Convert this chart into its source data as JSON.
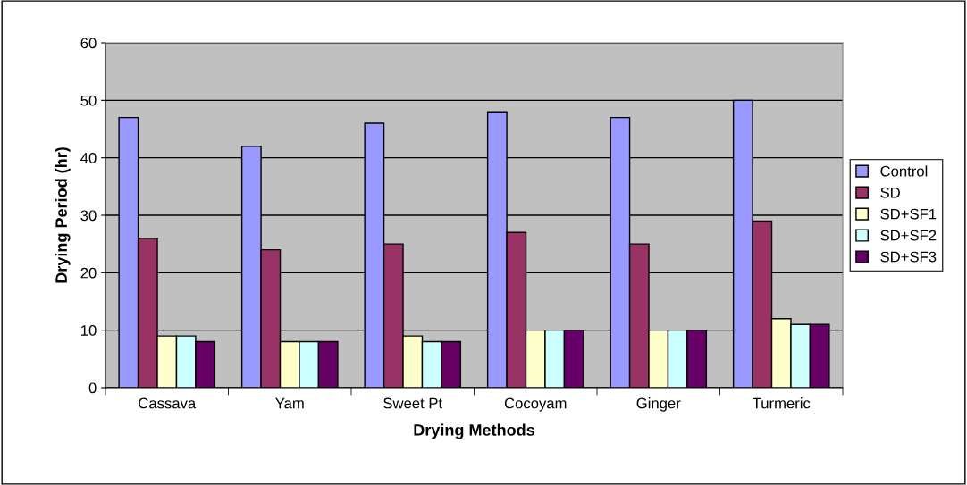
{
  "chart_data": {
    "type": "bar",
    "xlabel": "Drying Methods",
    "ylabel": "Drying Period (hr)",
    "categories": [
      "Cassava",
      "Yam",
      "Sweet Pt",
      "Cocoyam",
      "Ginger",
      "Turmeric"
    ],
    "series": [
      {
        "name": "Control",
        "color": "#9999ff",
        "values": [
          47,
          42,
          46,
          48,
          47,
          50
        ]
      },
      {
        "name": "SD",
        "color": "#993366",
        "values": [
          26,
          24,
          25,
          27,
          25,
          29
        ]
      },
      {
        "name": "SD+SF1",
        "color": "#ffffcc",
        "values": [
          9,
          8,
          9,
          10,
          10,
          12
        ]
      },
      {
        "name": "SD+SF2",
        "color": "#ccffff",
        "values": [
          9,
          8,
          8,
          10,
          10,
          11
        ]
      },
      {
        "name": "SD+SF3",
        "color": "#660066",
        "values": [
          8,
          8,
          8,
          10,
          10,
          11
        ]
      }
    ],
    "ylim": [
      0,
      60
    ],
    "yticks": [
      0,
      10,
      20,
      30,
      40,
      50,
      60
    ],
    "grid": "y",
    "legend": "right"
  }
}
